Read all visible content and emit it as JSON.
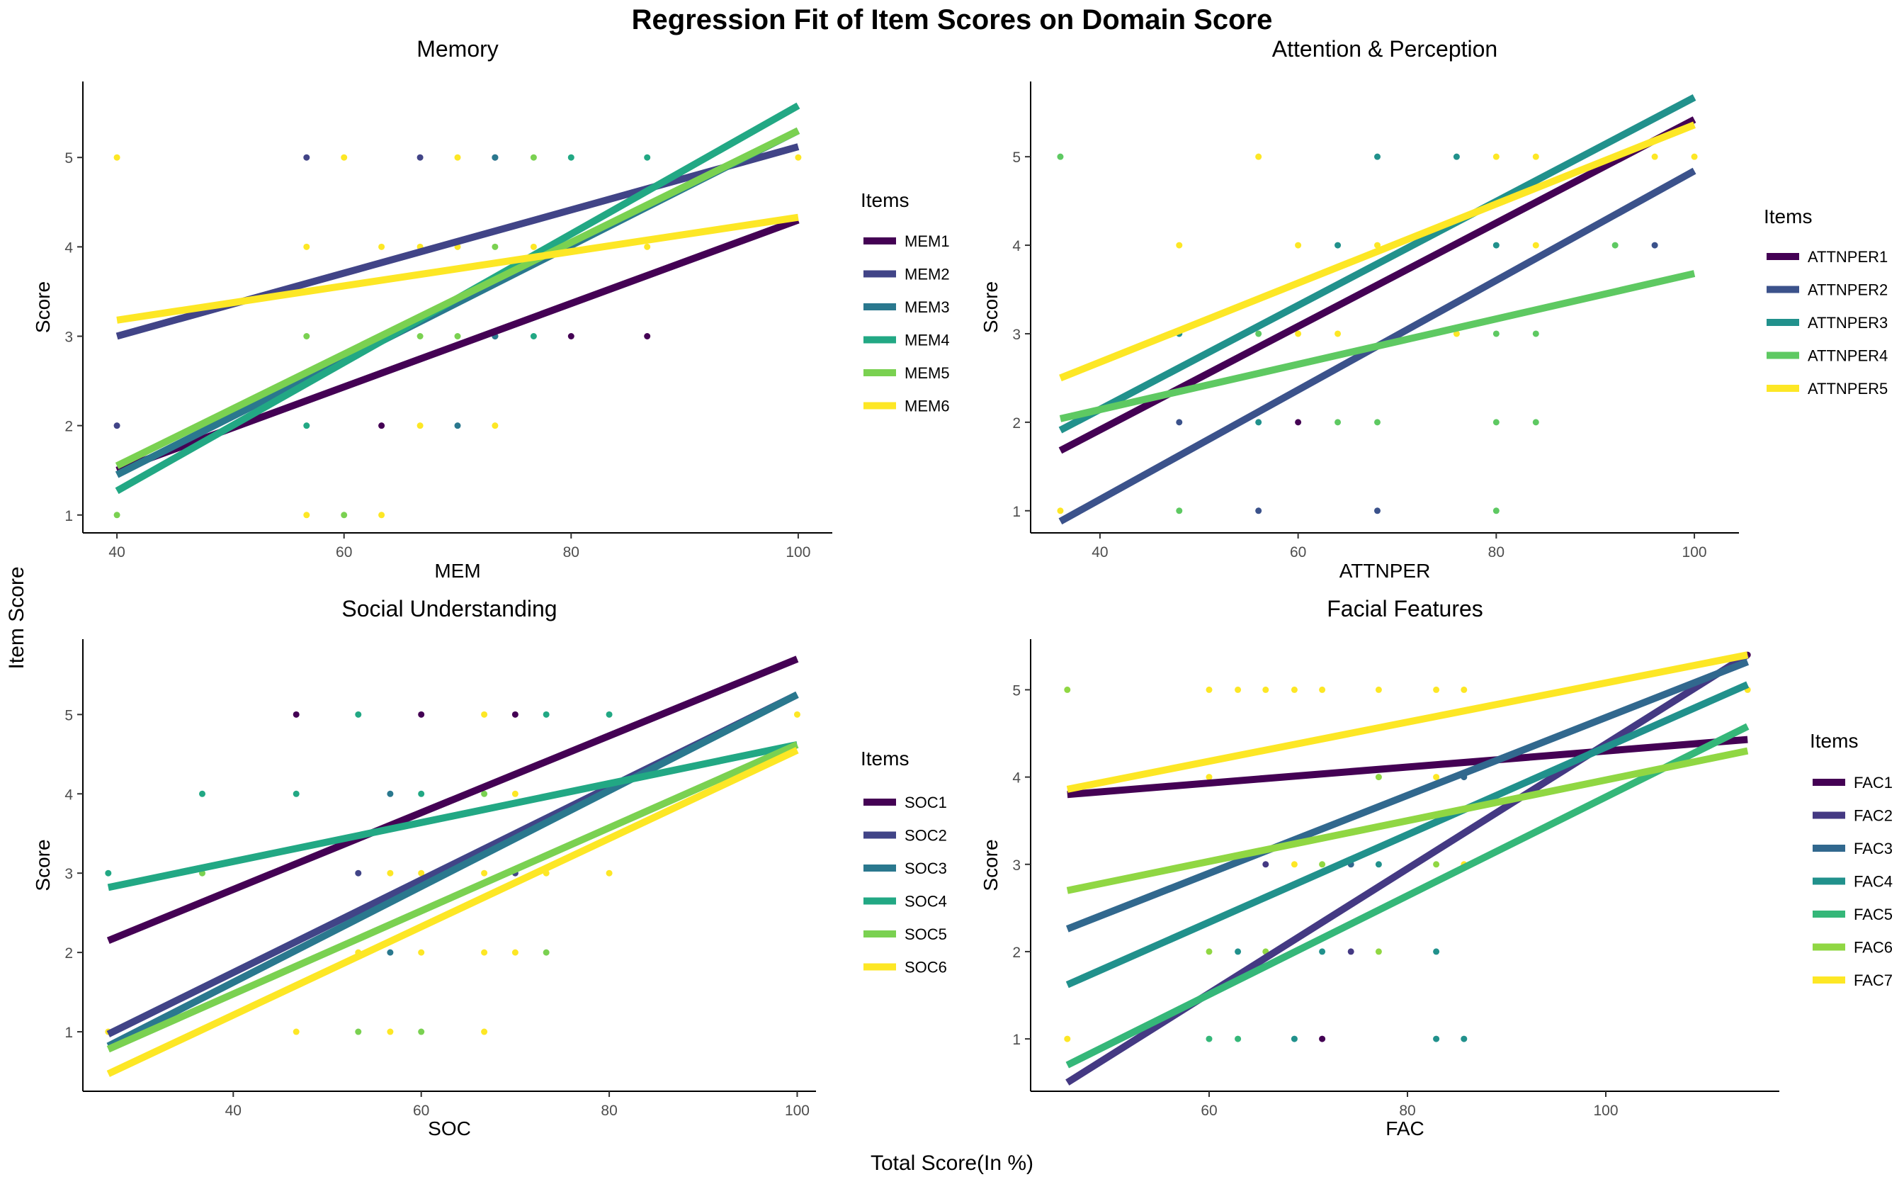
{
  "title": "Regression Fit of Item Scores on Domain Score",
  "y_label": "Item Score",
  "x_label": "Total Score(In %)",
  "chart_data": [
    {
      "type": "scatter",
      "title": "Memory",
      "xlabel": "MEM",
      "ylabel": "Score",
      "xlim": [
        37,
        103
      ],
      "ylim": [
        0.8,
        5.85
      ],
      "xticks": [
        40,
        60,
        80,
        100
      ],
      "yticks": [
        1,
        2,
        3,
        4,
        5
      ],
      "legend_title": "Items",
      "legend_position": "right",
      "grid": false,
      "series": [
        {
          "name": "MEM1",
          "color": "#440154",
          "line": [
            [
              40,
              1.5
            ],
            [
              100,
              4.3
            ]
          ],
          "points": [
            [
              63.3,
              2
            ],
            [
              73.3,
              3
            ],
            [
              80,
              3
            ],
            [
              86.7,
              3
            ]
          ]
        },
        {
          "name": "MEM2",
          "color": "#414487",
          "line": [
            [
              40,
              3.0
            ],
            [
              100,
              5.12
            ]
          ],
          "points": [
            [
              40,
              2
            ],
            [
              56.7,
              5
            ],
            [
              66.7,
              5
            ],
            [
              73.3,
              5
            ]
          ]
        },
        {
          "name": "MEM3",
          "color": "#2a788e",
          "line": [
            [
              40,
              1.45
            ],
            [
              100,
              5.3
            ]
          ],
          "points": [
            [
              70,
              2
            ],
            [
              73.3,
              5
            ],
            [
              73.3,
              3
            ]
          ]
        },
        {
          "name": "MEM4",
          "color": "#22a884",
          "line": [
            [
              40,
              1.27
            ],
            [
              100,
              5.58
            ]
          ],
          "points": [
            [
              56.7,
              2
            ],
            [
              76.7,
              3
            ],
            [
              80,
              5
            ],
            [
              86.7,
              5
            ]
          ]
        },
        {
          "name": "MEM5",
          "color": "#7ad151",
          "line": [
            [
              40,
              1.55
            ],
            [
              100,
              5.3
            ]
          ],
          "points": [
            [
              40,
              1
            ],
            [
              56.7,
              3
            ],
            [
              60,
              1
            ],
            [
              66.7,
              3
            ],
            [
              70,
              3
            ],
            [
              73.3,
              4
            ],
            [
              76.7,
              5
            ]
          ]
        },
        {
          "name": "MEM6",
          "color": "#fde725",
          "line": [
            [
              40,
              3.18
            ],
            [
              100,
              4.33
            ]
          ],
          "points": [
            [
              40,
              5
            ],
            [
              56.7,
              1
            ],
            [
              56.7,
              4
            ],
            [
              60,
              5
            ],
            [
              63.3,
              1
            ],
            [
              63.3,
              4
            ],
            [
              66.7,
              2
            ],
            [
              66.7,
              4
            ],
            [
              70,
              5
            ],
            [
              70,
              4
            ],
            [
              73.3,
              2
            ],
            [
              76.7,
              4
            ],
            [
              86.7,
              4
            ],
            [
              100,
              5
            ]
          ]
        }
      ]
    },
    {
      "type": "scatter",
      "title": "Attention & Perception",
      "xlabel": "ATTNPER",
      "ylabel": "Score",
      "xlim": [
        33,
        104.5
      ],
      "ylim": [
        0.75,
        5.85
      ],
      "xticks": [
        40,
        60,
        80,
        100
      ],
      "yticks": [
        1,
        2,
        3,
        4,
        5
      ],
      "legend_title": "Items",
      "legend_position": "right",
      "grid": false,
      "series": [
        {
          "name": "ATTNPER1",
          "color": "#440154",
          "line": [
            [
              36,
              1.68
            ],
            [
              100,
              5.42
            ]
          ],
          "points": [
            [
              60,
              2
            ]
          ]
        },
        {
          "name": "ATTNPER2",
          "color": "#3b528b",
          "line": [
            [
              36,
              0.88
            ],
            [
              100,
              4.84
            ]
          ],
          "points": [
            [
              48,
              2
            ],
            [
              56,
              1
            ],
            [
              68,
              1
            ],
            [
              96,
              4
            ]
          ]
        },
        {
          "name": "ATTNPER3",
          "color": "#21918c",
          "line": [
            [
              36,
              1.91
            ],
            [
              100,
              5.67
            ]
          ],
          "points": [
            [
              48,
              3
            ],
            [
              56,
              2
            ],
            [
              64,
              4
            ],
            [
              68,
              5
            ],
            [
              76,
              5
            ],
            [
              80,
              4
            ]
          ]
        },
        {
          "name": "ATTNPER4",
          "color": "#5ec962",
          "line": [
            [
              36,
              2.04
            ],
            [
              100,
              3.68
            ]
          ],
          "points": [
            [
              36,
              5
            ],
            [
              48,
              1
            ],
            [
              56,
              3
            ],
            [
              64,
              2
            ],
            [
              68,
              2
            ],
            [
              80,
              1
            ],
            [
              80,
              2
            ],
            [
              80,
              3
            ],
            [
              84,
              2
            ],
            [
              84,
              3
            ],
            [
              92,
              4
            ]
          ]
        },
        {
          "name": "ATTNPER5",
          "color": "#fde725",
          "line": [
            [
              36,
              2.5
            ],
            [
              100,
              5.36
            ]
          ],
          "points": [
            [
              36,
              1
            ],
            [
              48,
              4
            ],
            [
              56,
              5
            ],
            [
              60,
              3
            ],
            [
              60,
              4
            ],
            [
              64,
              3
            ],
            [
              68,
              4
            ],
            [
              76,
              3
            ],
            [
              80,
              5
            ],
            [
              84,
              4
            ],
            [
              84,
              5
            ],
            [
              96,
              5
            ],
            [
              100,
              5
            ]
          ]
        }
      ]
    },
    {
      "type": "scatter",
      "title": "Social Understanding",
      "xlabel": "SOC",
      "ylabel": "Score",
      "xlim": [
        24,
        102
      ],
      "ylim": [
        0.25,
        5.95
      ],
      "xticks": [
        40,
        60,
        80,
        100
      ],
      "yticks": [
        1,
        2,
        3,
        4,
        5
      ],
      "legend_title": "Items",
      "legend_position": "right",
      "grid": false,
      "series": [
        {
          "name": "SOC1",
          "color": "#440154",
          "line": [
            [
              26.7,
              2.15
            ],
            [
              100,
              5.7
            ]
          ],
          "points": [
            [
              46.7,
              5
            ],
            [
              60,
              5
            ],
            [
              70,
              5
            ]
          ]
        },
        {
          "name": "SOC2",
          "color": "#414487",
          "line": [
            [
              26.7,
              0.97
            ],
            [
              100,
              5.25
            ]
          ],
          "points": [
            [
              53.3,
              3
            ],
            [
              70,
              3
            ]
          ]
        },
        {
          "name": "SOC3",
          "color": "#2a788e",
          "line": [
            [
              26.7,
              0.82
            ],
            [
              100,
              5.25
            ]
          ],
          "points": [
            [
              56.7,
              4
            ],
            [
              56.7,
              2
            ]
          ]
        },
        {
          "name": "SOC4",
          "color": "#22a884",
          "line": [
            [
              26.7,
              2.82
            ],
            [
              100,
              4.62
            ]
          ],
          "points": [
            [
              26.7,
              3
            ],
            [
              36.7,
              4
            ],
            [
              46.7,
              4
            ],
            [
              53.3,
              5
            ],
            [
              60,
              4
            ],
            [
              73.3,
              5
            ],
            [
              80,
              5
            ]
          ]
        },
        {
          "name": "SOC5",
          "color": "#7ad151",
          "line": [
            [
              26.7,
              0.78
            ],
            [
              100,
              4.62
            ]
          ],
          "points": [
            [
              36.7,
              3
            ],
            [
              53.3,
              1
            ],
            [
              60,
              1
            ],
            [
              66.7,
              4
            ],
            [
              73.3,
              2
            ]
          ]
        },
        {
          "name": "SOC6",
          "color": "#fde725",
          "line": [
            [
              26.7,
              0.47
            ],
            [
              100,
              4.55
            ]
          ],
          "points": [
            [
              26.7,
              1
            ],
            [
              46.7,
              1
            ],
            [
              53.3,
              2
            ],
            [
              56.7,
              3
            ],
            [
              56.7,
              1
            ],
            [
              60,
              3
            ],
            [
              60,
              2
            ],
            [
              66.7,
              5
            ],
            [
              66.7,
              3
            ],
            [
              66.7,
              2
            ],
            [
              66.7,
              1
            ],
            [
              70,
              4
            ],
            [
              70,
              2
            ],
            [
              73.3,
              3
            ],
            [
              80,
              3
            ],
            [
              100,
              5
            ]
          ]
        }
      ]
    },
    {
      "type": "scatter",
      "title": "Facial Features",
      "xlabel": "FAC",
      "ylabel": "Score",
      "xlim": [
        42,
        117.5
      ],
      "ylim": [
        0.4,
        5.58
      ],
      "xticks": [
        60,
        80,
        100
      ],
      "yticks": [
        1,
        2,
        3,
        4,
        5
      ],
      "legend_title": "Items",
      "legend_position": "right",
      "grid": false,
      "series": [
        {
          "name": "FAC1",
          "color": "#440154",
          "line": [
            [
              45.7,
              3.8
            ],
            [
              114.3,
              4.43
            ]
          ],
          "points": [
            [
              71.4,
              1
            ],
            [
              114.3,
              5.4
            ]
          ]
        },
        {
          "name": "FAC2",
          "color": "#443983",
          "line": [
            [
              45.7,
              0.5
            ],
            [
              114.3,
              5.4
            ]
          ],
          "points": [
            [
              65.7,
              3
            ],
            [
              74.3,
              2
            ]
          ]
        },
        {
          "name": "FAC3",
          "color": "#31688e",
          "line": [
            [
              45.7,
              2.26
            ],
            [
              114.3,
              5.32
            ]
          ],
          "points": [
            [
              74.3,
              3
            ],
            [
              85.7,
              4
            ]
          ]
        },
        {
          "name": "FAC4",
          "color": "#21918c",
          "line": [
            [
              45.7,
              1.62
            ],
            [
              114.3,
              5.06
            ]
          ],
          "points": [
            [
              62.9,
              2
            ],
            [
              68.6,
              1
            ],
            [
              71.4,
              2
            ],
            [
              77.1,
              3
            ],
            [
              82.9,
              1
            ],
            [
              82.9,
              2
            ],
            [
              85.7,
              1
            ]
          ]
        },
        {
          "name": "FAC5",
          "color": "#35b779",
          "line": [
            [
              45.7,
              0.7
            ],
            [
              114.3,
              4.58
            ]
          ],
          "points": [
            [
              60,
              1
            ],
            [
              62.9,
              1
            ]
          ]
        },
        {
          "name": "FAC6",
          "color": "#90d743",
          "line": [
            [
              45.7,
              2.7
            ],
            [
              114.3,
              4.3
            ]
          ],
          "points": [
            [
              45.7,
              5
            ],
            [
              60,
              2
            ],
            [
              65.7,
              2
            ],
            [
              71.4,
              3
            ],
            [
              77.1,
              4
            ],
            [
              77.1,
              2
            ],
            [
              82.9,
              3
            ]
          ]
        },
        {
          "name": "FAC7",
          "color": "#fde725",
          "line": [
            [
              45.7,
              3.86
            ],
            [
              114.3,
              5.4
            ]
          ],
          "points": [
            [
              45.7,
              1
            ],
            [
              60,
              5
            ],
            [
              60,
              4
            ],
            [
              62.9,
              5
            ],
            [
              65.7,
              5
            ],
            [
              68.6,
              5
            ],
            [
              68.6,
              3
            ],
            [
              71.4,
              5
            ],
            [
              77.1,
              5
            ],
            [
              82.9,
              5
            ],
            [
              82.9,
              4
            ],
            [
              85.7,
              5
            ],
            [
              85.7,
              3
            ],
            [
              114.3,
              5
            ]
          ]
        }
      ]
    }
  ]
}
